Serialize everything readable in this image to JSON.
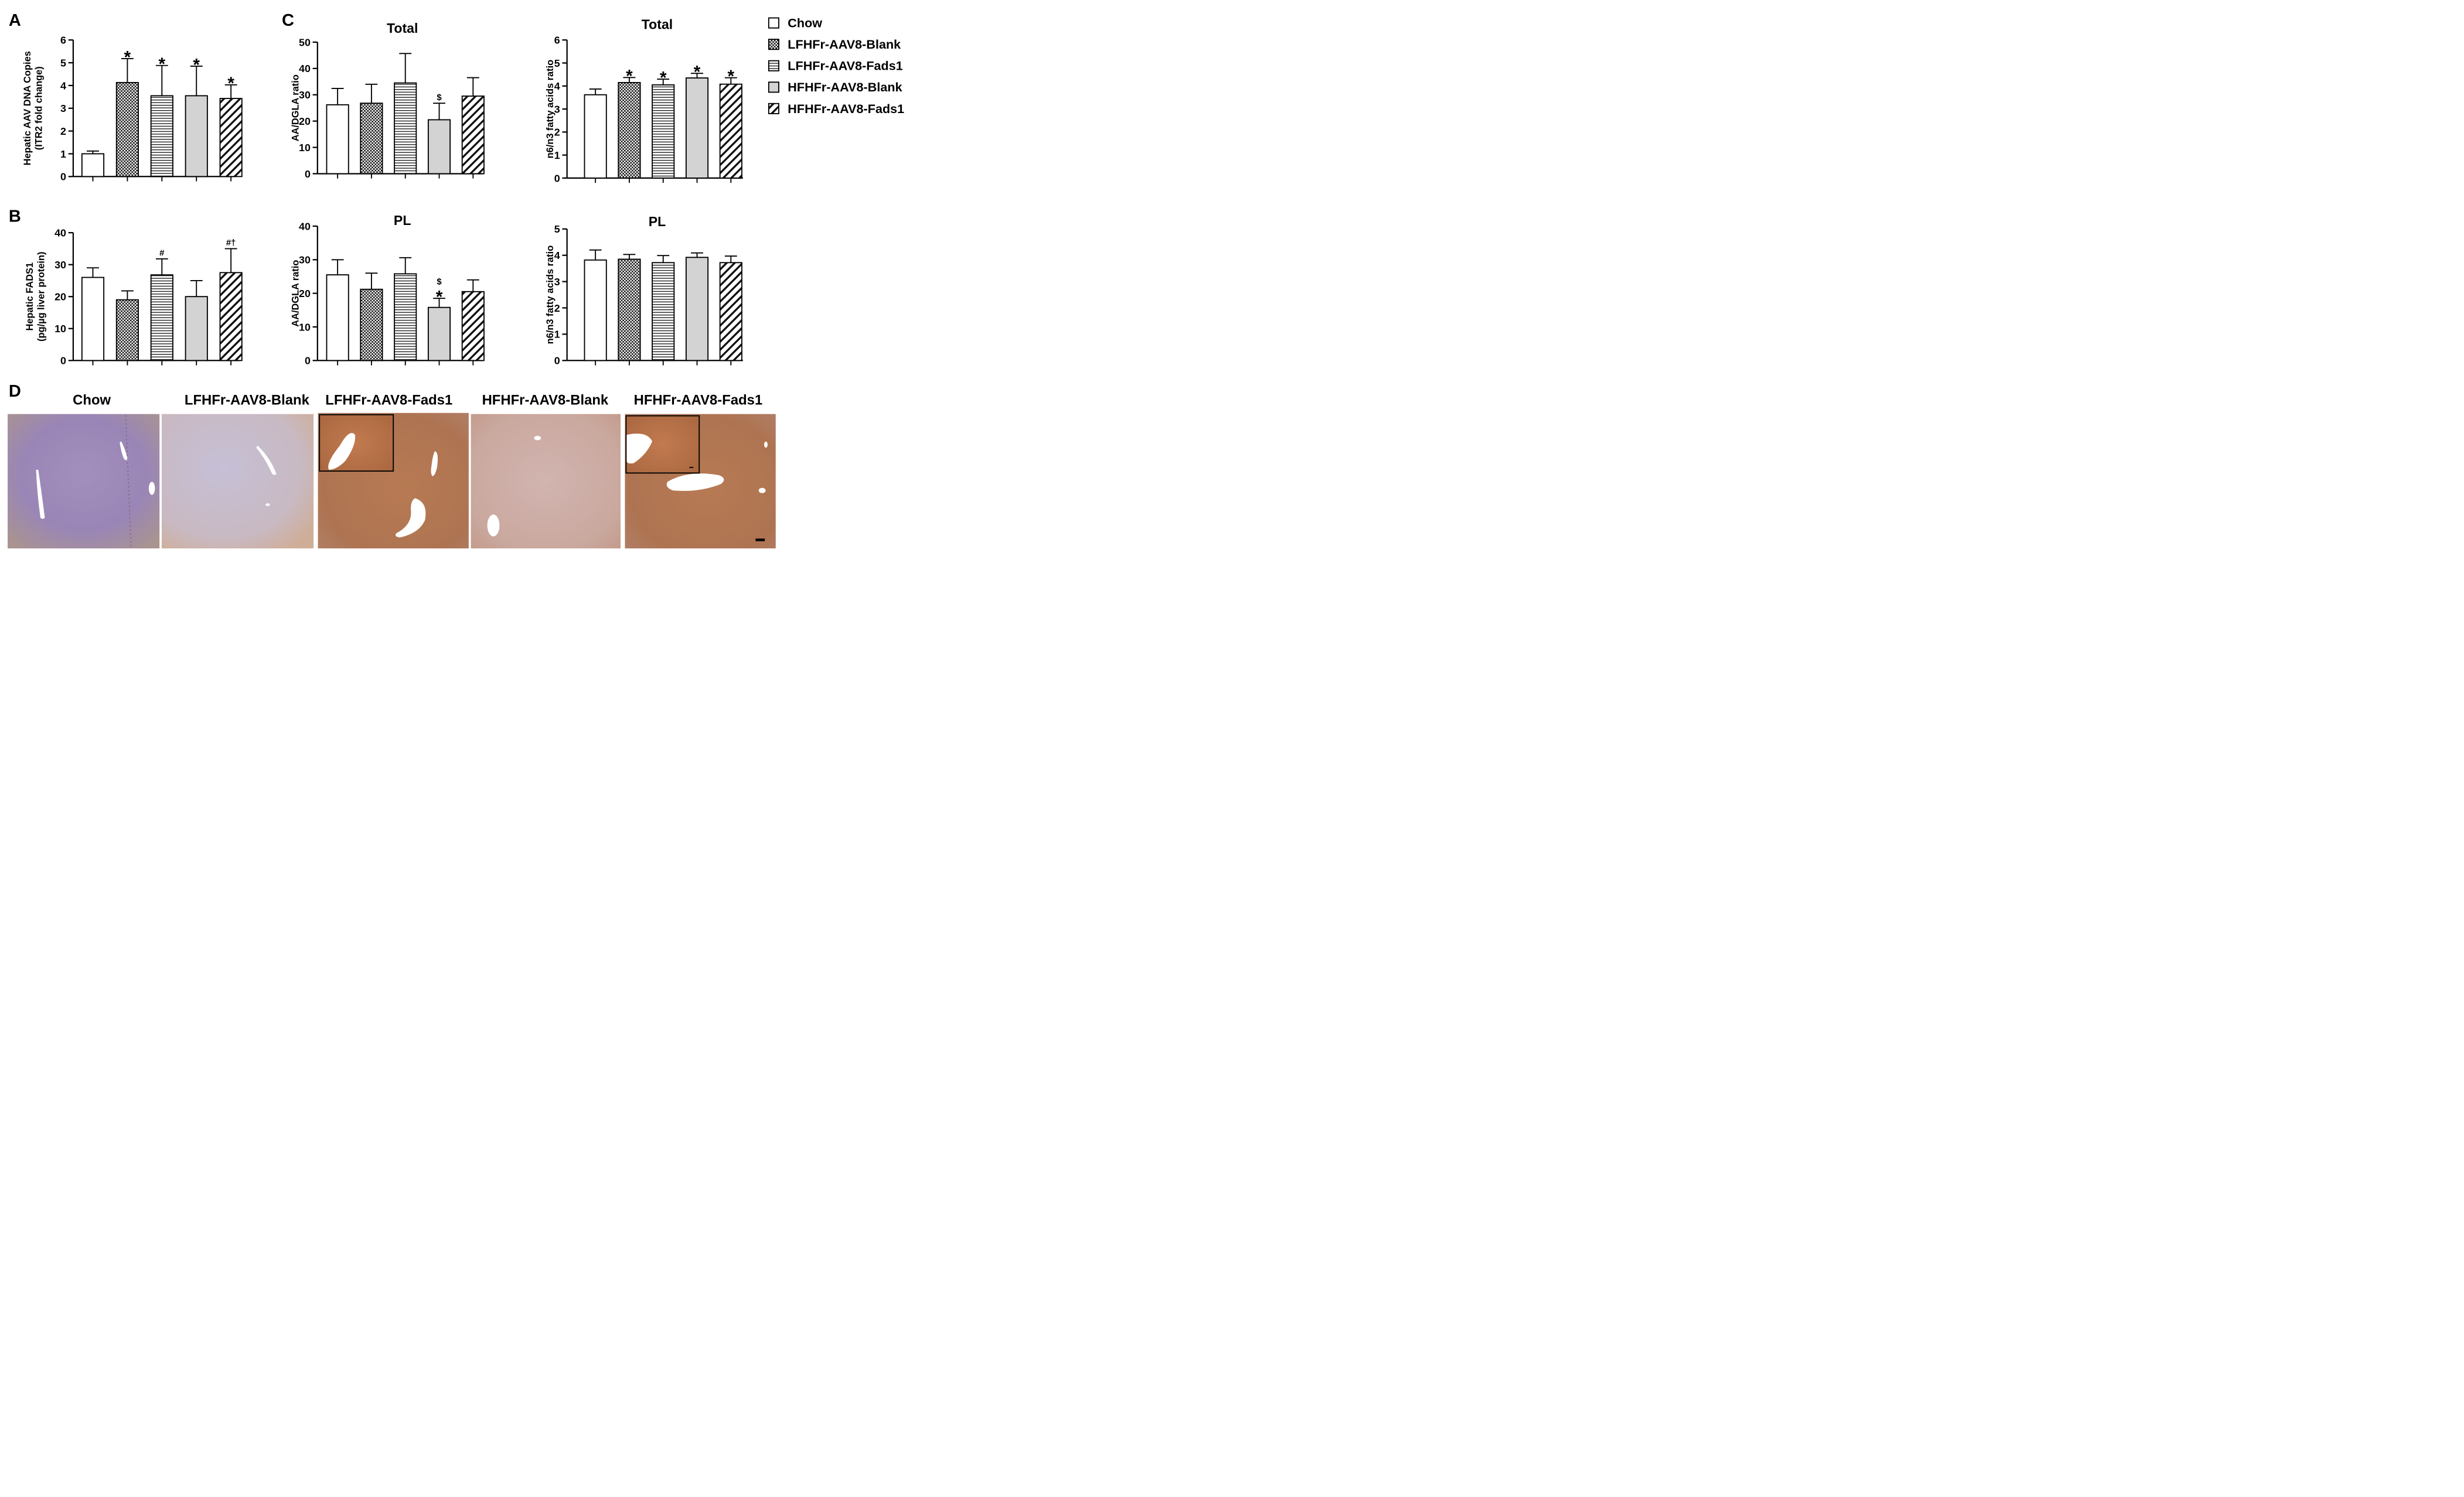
{
  "panel_letters": {
    "a": "A",
    "b": "B",
    "c": "C",
    "d": "D"
  },
  "legend": {
    "items": [
      {
        "label": "Chow",
        "pattern": "white"
      },
      {
        "label": "LFHFr-AAV8-Blank",
        "pattern": "check"
      },
      {
        "label": "LFHFr-AAV8-Fads1",
        "pattern": "hstripe"
      },
      {
        "label": "HFHFr-AAV8-Blank",
        "pattern": "gray"
      },
      {
        "label": "HFHFr-AAV8-Fads1",
        "pattern": "diag"
      }
    ]
  },
  "colors": {
    "gray_fill": "#d3d3d3",
    "ink": "#000000",
    "stain_brown": "#b06e45",
    "stain_purple": "#8e7ab0"
  },
  "chart_data": [
    {
      "id": "a",
      "type": "bar",
      "title": "",
      "ylabel_lines": [
        "Hepatic AAV DNA Copies",
        "(ITR2 fold change)"
      ],
      "ylim": [
        0,
        6
      ],
      "yticks": [
        0,
        1,
        2,
        3,
        4,
        5,
        6
      ],
      "categories": [
        "Chow",
        "LFHFr-AAV8-Blank",
        "LFHFr-AAV8-Fads1",
        "HFHFr-AAV8-Blank",
        "HFHFr-AAV8-Fads1"
      ],
      "values": [
        1.0,
        4.13,
        3.55,
        3.55,
        3.43
      ],
      "errors": [
        0.12,
        1.05,
        1.33,
        1.3,
        0.6
      ],
      "annotations": [
        "",
        "*",
        "*",
        "*",
        "*"
      ],
      "grid": false
    },
    {
      "id": "b",
      "type": "bar",
      "title": "",
      "ylabel_lines": [
        "Hepatic FADS1",
        "(pg/µg liver protein)"
      ],
      "ylim": [
        0,
        40
      ],
      "yticks": [
        0,
        10,
        20,
        30,
        40
      ],
      "categories": [
        "Chow",
        "LFHFr-AAV8-Blank",
        "LFHFr-AAV8-Fads1",
        "HFHFr-AAV8-Blank",
        "HFHFr-AAV8-Fads1"
      ],
      "values": [
        26.0,
        19.0,
        26.8,
        20.0,
        27.5
      ],
      "errors": [
        3.0,
        2.8,
        5.0,
        5.0,
        7.5
      ],
      "annotations": [
        "",
        "",
        "#",
        "",
        "#†"
      ],
      "grid": false
    },
    {
      "id": "c1",
      "type": "bar",
      "title": "Total",
      "ylabel_lines": [
        "AA/DGLA ratio"
      ],
      "ylim": [
        0,
        50
      ],
      "yticks": [
        0,
        10,
        20,
        30,
        40,
        50
      ],
      "categories": [
        "Chow",
        "LFHFr-AAV8-Blank",
        "LFHFr-AAV8-Fads1",
        "HFHFr-AAV8-Blank",
        "HFHFr-AAV8-Fads1"
      ],
      "values": [
        26.2,
        26.8,
        34.5,
        20.5,
        29.5
      ],
      "errors": [
        6.2,
        7.2,
        11.2,
        6.3,
        7.0
      ],
      "annotations": [
        "",
        "",
        "",
        "$",
        ""
      ],
      "grid": false
    },
    {
      "id": "c2",
      "type": "bar",
      "title": "Total",
      "ylabel_lines": [
        "n6/n3 fatty acids ratio"
      ],
      "ylim": [
        0,
        6
      ],
      "yticks": [
        0,
        1,
        2,
        3,
        4,
        5,
        6
      ],
      "categories": [
        "Chow",
        "LFHFr-AAV8-Blank",
        "LFHFr-AAV8-Fads1",
        "HFHFr-AAV8-Blank",
        "HFHFr-AAV8-Fads1"
      ],
      "values": [
        3.62,
        4.15,
        4.05,
        4.35,
        4.08
      ],
      "errors": [
        0.25,
        0.22,
        0.25,
        0.2,
        0.28
      ],
      "annotations": [
        "",
        "*",
        "*",
        "*",
        "*"
      ],
      "grid": false
    },
    {
      "id": "c3",
      "type": "bar",
      "title": "PL",
      "ylabel_lines": [
        "AA/DGLA ratio"
      ],
      "ylim": [
        0,
        40
      ],
      "yticks": [
        0,
        10,
        20,
        30,
        40
      ],
      "categories": [
        "Chow",
        "LFHFr-AAV8-Blank",
        "LFHFr-AAV8-Fads1",
        "HFHFr-AAV8-Blank",
        "HFHFr-AAV8-Fads1"
      ],
      "values": [
        25.5,
        21.2,
        25.8,
        15.8,
        20.5
      ],
      "errors": [
        4.5,
        4.8,
        4.8,
        2.7,
        3.5
      ],
      "annotations": [
        "",
        "",
        "",
        "$\n*",
        ""
      ],
      "grid": false
    },
    {
      "id": "c4",
      "type": "bar",
      "title": "PL",
      "ylabel_lines": [
        "n6/n3 fatty acids ratio"
      ],
      "ylim": [
        0,
        5
      ],
      "yticks": [
        0,
        1,
        2,
        3,
        4,
        5
      ],
      "categories": [
        "Chow",
        "LFHFr-AAV8-Blank",
        "LFHFr-AAV8-Fads1",
        "HFHFr-AAV8-Blank",
        "HFHFr-AAV8-Fads1"
      ],
      "values": [
        3.82,
        3.85,
        3.72,
        3.92,
        3.72
      ],
      "errors": [
        0.38,
        0.18,
        0.27,
        0.17,
        0.25
      ],
      "annotations": [
        "",
        "",
        "",
        "",
        ""
      ],
      "grid": false
    }
  ],
  "micrographs": [
    {
      "label": "Chow",
      "tone": "purple",
      "inset": false,
      "scale_bar": false
    },
    {
      "label": "LFHFr-AAV8-Blank",
      "tone": "pale",
      "inset": false,
      "scale_bar": false
    },
    {
      "label": "LFHFr-AAV8-Fads1",
      "tone": "brown",
      "inset": true,
      "scale_bar": false
    },
    {
      "label": "HFHFr-AAV8-Blank",
      "tone": "light-brown",
      "inset": false,
      "scale_bar": false
    },
    {
      "label": "HFHFr-AAV8-Fads1",
      "tone": "brown",
      "inset": true,
      "scale_bar": true
    }
  ]
}
